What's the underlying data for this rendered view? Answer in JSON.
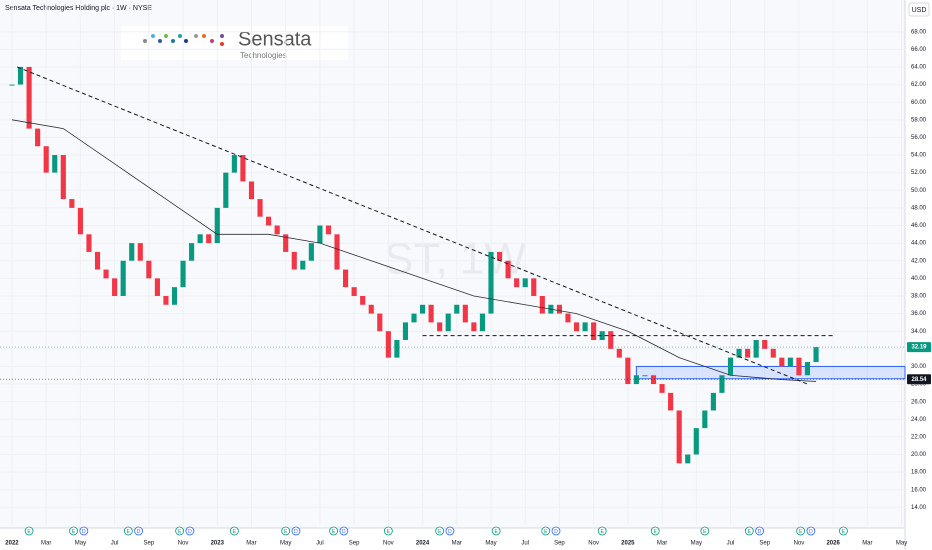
{
  "chart_data": {
    "type": "candlestick",
    "title": "Sensata Technologies Holding plc · 1W · NYSE",
    "currency": "USD",
    "watermark": "ST, 1W",
    "logo": {
      "name": "Sensata",
      "sub": "Technologies"
    },
    "up_color": "#089981",
    "down_color": "#f23645",
    "x": [
      0,
      0.5,
      1,
      1.5,
      2,
      2.5,
      3,
      3.5,
      4,
      4.5,
      5,
      5.5,
      6,
      6.5,
      7,
      7.5,
      8,
      8.5,
      9,
      9.5,
      10,
      10.5,
      11,
      11.5,
      12,
      12.5,
      13,
      13.5,
      14,
      14.5,
      15,
      15.5,
      16,
      16.5,
      17,
      17.5,
      18,
      18.5,
      19,
      19.5,
      20,
      20.5,
      21,
      21.5,
      22,
      22.5,
      23,
      23.5,
      24,
      24.5,
      25,
      25.5,
      26,
      26.5,
      27,
      27.5,
      28,
      28.5,
      29,
      29.5,
      30,
      30.5,
      31,
      31.5,
      32,
      32.5,
      33,
      33.5,
      34,
      34.5,
      35,
      35.5,
      36,
      36.5,
      37,
      37.5,
      38,
      38.5,
      39,
      39.5,
      40,
      40.5,
      41,
      41.5,
      42,
      42.5,
      43,
      43.5,
      44,
      44.5,
      45,
      45.5,
      46,
      46.5,
      47
    ],
    "values": [
      62,
      64,
      57,
      55,
      52,
      54,
      49,
      48,
      45,
      43,
      41,
      40,
      38,
      42,
      44,
      42,
      40,
      38,
      37,
      39,
      42,
      44,
      45,
      44,
      48,
      52,
      54,
      51,
      49,
      47,
      46,
      45,
      43,
      41,
      42,
      44,
      46,
      45,
      41,
      39,
      38,
      37,
      36,
      34,
      31,
      33,
      35,
      36,
      37,
      35,
      34,
      36,
      37,
      35,
      34,
      36,
      43,
      42,
      40,
      39,
      40,
      38,
      36,
      37,
      36,
      35,
      34,
      35,
      33,
      34,
      32,
      31,
      28,
      29,
      29,
      28,
      27,
      25,
      19,
      20,
      23,
      25,
      27,
      29,
      31,
      32,
      31,
      33,
      32,
      31,
      30,
      31,
      29,
      30.5,
      32.19
    ],
    "ma": {
      "color": "#2a2e39",
      "x": [
        0,
        3,
        6,
        9,
        12,
        15,
        18,
        21,
        24,
        27,
        30,
        33,
        36,
        39,
        42,
        45,
        47
      ],
      "values": [
        58,
        57,
        53,
        49,
        45,
        45,
        44,
        42,
        40,
        38,
        37,
        36,
        34,
        31,
        29,
        28.5,
        28.3
      ]
    },
    "trendline": {
      "x": [
        0.3,
        46.5
      ],
      "values": [
        64,
        28
      ]
    },
    "resistance": {
      "x": [
        24,
        48
      ],
      "values": [
        33.5,
        33.5
      ]
    },
    "zone": {
      "x": [
        36.5,
        52.2
      ],
      "values": [
        28.6,
        30.0
      ],
      "color": "#2962ff"
    },
    "price_labels": [
      {
        "value": 32.19,
        "color": "#089981"
      },
      {
        "value": 28.54,
        "color": "#131722"
      }
    ],
    "events": [
      {
        "x": 1,
        "label": "E"
      },
      {
        "x": 3.6,
        "label": "E"
      },
      {
        "x": 4.2,
        "label": "D"
      },
      {
        "x": 6.8,
        "label": "E"
      },
      {
        "x": 7.4,
        "label": "D"
      },
      {
        "x": 9.8,
        "label": "E"
      },
      {
        "x": 10.4,
        "label": "D"
      },
      {
        "x": 13,
        "label": "E"
      },
      {
        "x": 16,
        "label": "E"
      },
      {
        "x": 16.6,
        "label": "D"
      },
      {
        "x": 18.8,
        "label": "E"
      },
      {
        "x": 19.4,
        "label": "D"
      },
      {
        "x": 22,
        "label": "E"
      },
      {
        "x": 25,
        "label": "E"
      },
      {
        "x": 25.6,
        "label": "D"
      },
      {
        "x": 28.3,
        "label": "E"
      },
      {
        "x": 31.2,
        "label": "E"
      },
      {
        "x": 31.8,
        "label": "D"
      },
      {
        "x": 34.5,
        "label": "E"
      },
      {
        "x": 37.6,
        "label": "E"
      },
      {
        "x": 40.5,
        "label": "E"
      },
      {
        "x": 43.1,
        "label": "E"
      },
      {
        "x": 43.7,
        "label": "D"
      },
      {
        "x": 46.1,
        "label": "E"
      },
      {
        "x": 46.7,
        "label": "D"
      },
      {
        "x": 48.6,
        "label": "E"
      }
    ],
    "xlim": [
      -0.7,
      52.2
    ],
    "ylim": [
      12,
      71.6
    ],
    "xticks": [
      {
        "value": 0,
        "label": "2022"
      },
      {
        "value": 2,
        "label": "Mar"
      },
      {
        "value": 4,
        "label": "May"
      },
      {
        "value": 6,
        "label": "Jul"
      },
      {
        "value": 8,
        "label": "Sep"
      },
      {
        "value": 10,
        "label": "Nov"
      },
      {
        "value": 12,
        "label": "2023"
      },
      {
        "value": 14,
        "label": "Mar"
      },
      {
        "value": 16,
        "label": "May"
      },
      {
        "value": 18,
        "label": "Jul"
      },
      {
        "value": 20,
        "label": "Sep"
      },
      {
        "value": 22,
        "label": "Nov"
      },
      {
        "value": 24,
        "label": "2024"
      },
      {
        "value": 26,
        "label": "Mar"
      },
      {
        "value": 28,
        "label": "May"
      },
      {
        "value": 30,
        "label": "Jul"
      },
      {
        "value": 32,
        "label": "Sep"
      },
      {
        "value": 34,
        "label": "Nov"
      },
      {
        "value": 36,
        "label": "2025"
      },
      {
        "value": 38,
        "label": "Mar"
      },
      {
        "value": 40,
        "label": "May"
      },
      {
        "value": 42,
        "label": "Jul"
      },
      {
        "value": 44,
        "label": "Sep"
      },
      {
        "value": 46,
        "label": "Nov"
      },
      {
        "value": 48,
        "label": "2026"
      },
      {
        "value": 50,
        "label": "Mar"
      },
      {
        "value": 52,
        "label": "May"
      }
    ],
    "yticks": [
      {
        "value": 14,
        "label": "14.00"
      },
      {
        "value": 16,
        "label": "16.00"
      },
      {
        "value": 18,
        "label": "18.00"
      },
      {
        "value": 20,
        "label": "20.00"
      },
      {
        "value": 22,
        "label": "22.00"
      },
      {
        "value": 24,
        "label": "24.00"
      },
      {
        "value": 26,
        "label": "26.00"
      },
      {
        "value": 28,
        "label": "28.00"
      },
      {
        "value": 30,
        "label": "30.00"
      },
      {
        "value": 32,
        "label": "32.00"
      },
      {
        "value": 34,
        "label": "34.00"
      },
      {
        "value": 36,
        "label": "36.00"
      },
      {
        "value": 38,
        "label": "38.00"
      },
      {
        "value": 40,
        "label": "40.00"
      },
      {
        "value": 42,
        "label": "42.00"
      },
      {
        "value": 44,
        "label": "44.00"
      },
      {
        "value": 46,
        "label": "46.00"
      },
      {
        "value": 48,
        "label": "48.00"
      },
      {
        "value": 50,
        "label": "50.00"
      },
      {
        "value": 52,
        "label": "52.00"
      },
      {
        "value": 54,
        "label": "54.00"
      },
      {
        "value": 56,
        "label": "56.00"
      },
      {
        "value": 58,
        "label": "58.00"
      },
      {
        "value": 60,
        "label": "60.00"
      },
      {
        "value": 62,
        "label": "62.00"
      },
      {
        "value": 64,
        "label": "64.00"
      },
      {
        "value": 66,
        "label": "66.00"
      },
      {
        "value": 68,
        "label": "68.00"
      }
    ]
  }
}
